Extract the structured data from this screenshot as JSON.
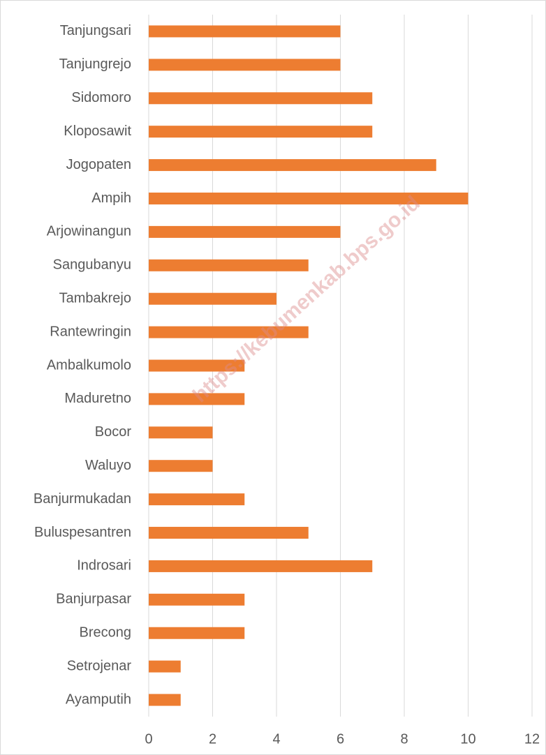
{
  "chart_data": {
    "type": "bar",
    "orientation": "horizontal",
    "categories": [
      "Tanjungsari",
      "Tanjungrejo",
      "Sidomoro",
      "Kloposawit",
      "Jogopaten",
      "Ampih",
      "Arjowinangun",
      "Sangubanyu",
      "Tambakrejo",
      "Rantewringin",
      "Ambalkumolo",
      "Maduretno",
      "Bocor",
      "Waluyo",
      "Banjurmukadan",
      "Buluspesantren",
      "Indrosari",
      "Banjurpasar",
      "Brecong",
      "Setrojenar",
      "Ayamputih"
    ],
    "values": [
      6,
      6,
      7,
      7,
      9,
      10,
      6,
      5,
      4,
      5,
      3,
      3,
      2,
      2,
      3,
      5,
      7,
      3,
      3,
      1,
      1
    ],
    "color": "#ed7d31",
    "xlim": [
      0,
      12
    ],
    "xticks": [
      0,
      2,
      4,
      6,
      8,
      10,
      12
    ],
    "grid": true,
    "watermark": "https://kebumenkab.bps.go.id"
  }
}
